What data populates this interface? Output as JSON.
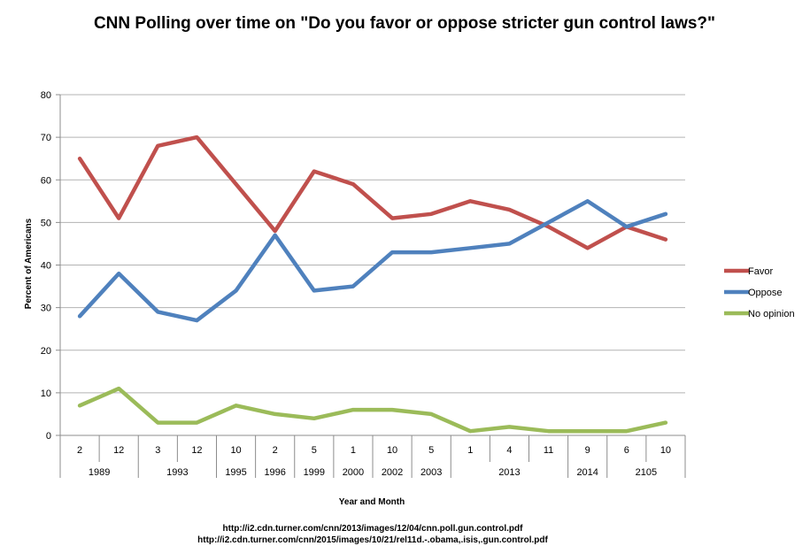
{
  "chart_data": {
    "type": "line",
    "title": "CNN Polling over time on \"Do you favor or oppose stricter gun control laws?\"",
    "xlabel": "Year and Month",
    "ylabel": "Percent of Americans",
    "ylim": [
      0,
      80
    ],
    "ytick_step": 10,
    "grid": true,
    "legend_position": "right",
    "x_months": [
      "2",
      "12",
      "3",
      "12",
      "10",
      "2",
      "5",
      "1",
      "10",
      "5",
      "1",
      "4",
      "11",
      "9",
      "6",
      "10"
    ],
    "x_year_groups": [
      {
        "label": "1989",
        "span": 2
      },
      {
        "label": "1993",
        "span": 2
      },
      {
        "label": "1995",
        "span": 1
      },
      {
        "label": "1996",
        "span": 1
      },
      {
        "label": "1999",
        "span": 1
      },
      {
        "label": "2000",
        "span": 1
      },
      {
        "label": "2002",
        "span": 1
      },
      {
        "label": "2003",
        "span": 1
      },
      {
        "label": "2013",
        "span": 3
      },
      {
        "label": "2014",
        "span": 1
      },
      {
        "label": "2105",
        "span": 2
      }
    ],
    "series": [
      {
        "name": "Favor",
        "color": "#c0504d",
        "values": [
          65,
          51,
          68,
          70,
          59,
          48,
          62,
          59,
          51,
          52,
          55,
          53,
          49,
          44,
          49,
          46
        ]
      },
      {
        "name": "Oppose",
        "color": "#4f81bd",
        "values": [
          28,
          38,
          29,
          27,
          34,
          47,
          34,
          35,
          43,
          43,
          44,
          45,
          50,
          55,
          49,
          52
        ]
      },
      {
        "name": "No opinion",
        "color": "#9bbb59",
        "values": [
          7,
          11,
          3,
          3,
          7,
          5,
          4,
          6,
          6,
          5,
          1,
          2,
          1,
          1,
          1,
          3
        ]
      }
    ]
  },
  "sources": [
    "http://i2.cdn.turner.com/cnn/2013/images/12/04/cnn.poll.gun.control.pdf",
    "http://i2.cdn.turner.com/cnn/2015/images/10/21/rel11d.-.obama,.isis,.gun.control.pdf"
  ]
}
